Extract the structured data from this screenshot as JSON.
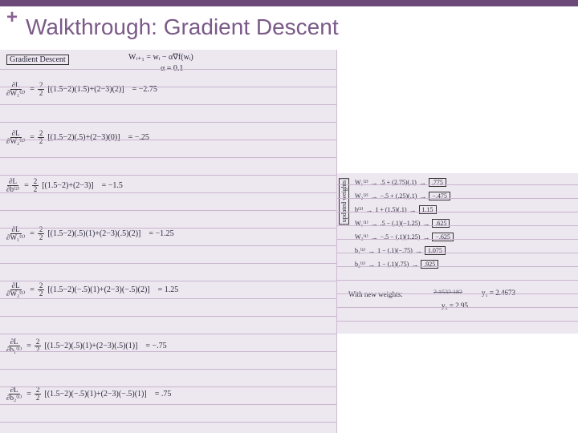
{
  "slide": {
    "accent_color": "#6b4a7a",
    "plus_color": "#8a5f95",
    "title_color": "#7a5a88",
    "title": "Walkthrough: Gradient Descent",
    "plus": "+"
  },
  "paper_bg": "#ede7f0",
  "rule_color": "#c8b6cd",
  "left": {
    "heading": "Gradient Descent",
    "update_rule": "Wᵢ₊₁ = wᵢ − α∇f(wᵢ)",
    "alpha": "α = 0.1",
    "rows": [
      {
        "dnum": "∂L",
        "dden": "∂W₁⁽²⁾",
        "coef_num": "2",
        "coef_den": "2",
        "body": "[(1.5−2)(1.5)+(2−3)(2)]",
        "val": "= −2.75"
      },
      {
        "dnum": "∂L",
        "dden": "∂W₂⁽²⁾",
        "coef_num": "2",
        "coef_den": "2",
        "body": "[(1.5−2)(.5)+(2−3)(0)]",
        "val": "= −.25"
      },
      {
        "dnum": "∂L",
        "dden": "∂b⁽²⁾",
        "coef_num": "2",
        "coef_den": "2",
        "body": "[(1.5−2)+(2−3)]",
        "val": "= −1.5"
      },
      {
        "dnum": "∂L",
        "dden": "∂W₁⁽¹⁾",
        "coef_num": "2",
        "coef_den": "2",
        "body": "[(1.5−2)(.5)(1)+(2−3)(.5)(2)]",
        "val": "= −1.25"
      },
      {
        "dnum": "∂L",
        "dden": "∂W₂⁽¹⁾",
        "coef_num": "2",
        "coef_den": "2",
        "body": "[(1.5−2)(−.5)(1)+(2−3)(−.5)(2)]",
        "val": "= 1.25"
      },
      {
        "dnum": "∂L",
        "dden": "∂b₁⁽¹⁾",
        "coef_num": "2",
        "coef_den": "2",
        "body": "[(1.5−2)(.5)(1)+(2−3)(.5)(1)]",
        "val": "= −.75"
      },
      {
        "dnum": "∂L",
        "dden": "∂b₂⁽¹⁾",
        "coef_num": "2",
        "coef_den": "2",
        "body": "[(1.5−2)(−.5)(1)+(2−3)(−.5)(1)]",
        "val": "= .75"
      }
    ]
  },
  "right": {
    "vlabel": "updated weights",
    "weights": [
      {
        "name": "W₁⁽²⁾",
        "expr": ".5 + (2.75)(.1)",
        "res": ".775"
      },
      {
        "name": "W₂⁽²⁾",
        "expr": "−.5 + (.25)(.1)",
        "res": "−.475"
      },
      {
        "name": "b⁽²⁾",
        "expr": "1 + (1.5)(.1)",
        "res": "1.15"
      },
      {
        "name": "W₁⁽¹⁾",
        "expr": ".5 − (.1)(−1.25)",
        "res": ".625"
      },
      {
        "name": "W₂⁽¹⁾",
        "expr": "−.5 − (.1)(1.25)",
        "res": "−.625"
      },
      {
        "name": "b₁⁽¹⁾",
        "expr": "1 − (.1)(−.75)",
        "res": "1.075"
      },
      {
        "name": "b₂⁽¹⁾",
        "expr": "1 − (.1)(.75)",
        "res": ".925"
      }
    ],
    "footer_label": "With new weights:",
    "footer_y1": "y₁ = 2.4673",
    "footer_y1_scratch": "2.1532.182",
    "footer_y2": "y₂ = 2.95"
  }
}
